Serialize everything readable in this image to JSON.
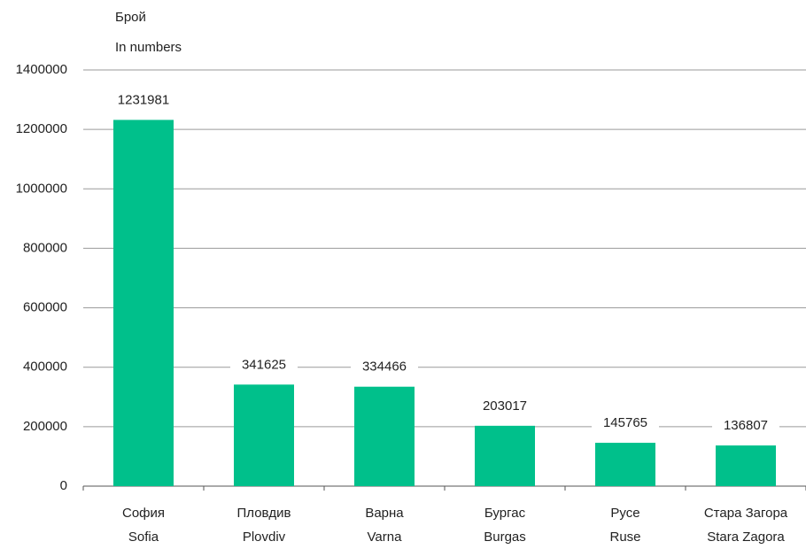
{
  "chart_data": {
    "type": "bar",
    "ylabel": [
      "Брой",
      "In numbers"
    ],
    "categories": [
      [
        "София",
        "Sofia"
      ],
      [
        "Пловдив",
        "Plovdiv"
      ],
      [
        "Варна",
        "Varna"
      ],
      [
        "Бургас",
        "Burgas"
      ],
      [
        "Русе",
        "Ruse"
      ],
      [
        "Стара Загора",
        "Stara Zagora"
      ]
    ],
    "values": [
      1231981,
      341625,
      334466,
      203017,
      145765,
      136807
    ],
    "color": "#00c08b",
    "ylim": [
      0,
      1400000
    ],
    "yticks": [
      0,
      200000,
      400000,
      600000,
      800000,
      1000000,
      1200000,
      1400000
    ],
    "grid": true
  }
}
